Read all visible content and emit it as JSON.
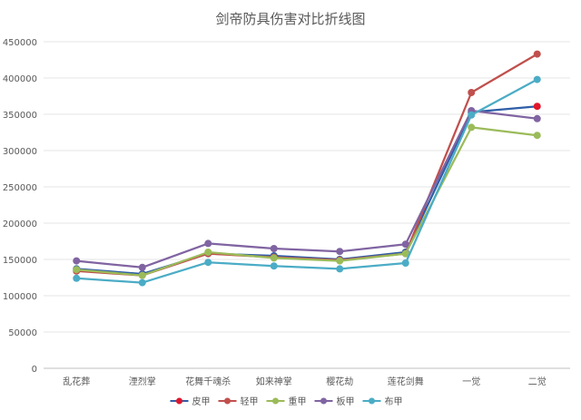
{
  "chart_data": {
    "type": "line",
    "title": "剑帝防具伤害对比折线图",
    "xlabel": "",
    "ylabel": "",
    "categories": [
      "乱花葬",
      "湮烈掌",
      "花舞千魂杀",
      "如来神掌",
      "樱花劫",
      "莲花剑舞",
      "一觉",
      "二觉"
    ],
    "ylim": [
      0,
      450000
    ],
    "yticks": [
      "0",
      "50000",
      "100000",
      "150000",
      "200000",
      "250000",
      "300000",
      "350000",
      "400000",
      "450000"
    ],
    "grid": true,
    "legend_position": "bottom",
    "series": [
      {
        "name": "皮甲",
        "color": "#2e5ea8",
        "values": [
          137000,
          130000,
          158000,
          155000,
          150000,
          160000,
          353000,
          361000
        ]
      },
      {
        "name": "轻甲",
        "color": "#c0504d",
        "values": [
          134000,
          128000,
          158000,
          153000,
          149000,
          158000,
          380000,
          433000
        ]
      },
      {
        "name": "重甲",
        "color": "#9bbb59",
        "values": [
          136000,
          128000,
          160000,
          152000,
          148000,
          158000,
          332000,
          321000
        ]
      },
      {
        "name": "板甲",
        "color": "#8064a2",
        "values": [
          148000,
          139000,
          172000,
          165000,
          161000,
          171000,
          355000,
          344000
        ]
      },
      {
        "name": "布甲",
        "color": "#4bacc6",
        "values": [
          124000,
          118000,
          146000,
          141000,
          137000,
          145000,
          349000,
          398000
        ]
      }
    ],
    "highlight_point": {
      "series": "皮甲",
      "category": "二觉",
      "color": "#e0162b"
    }
  }
}
